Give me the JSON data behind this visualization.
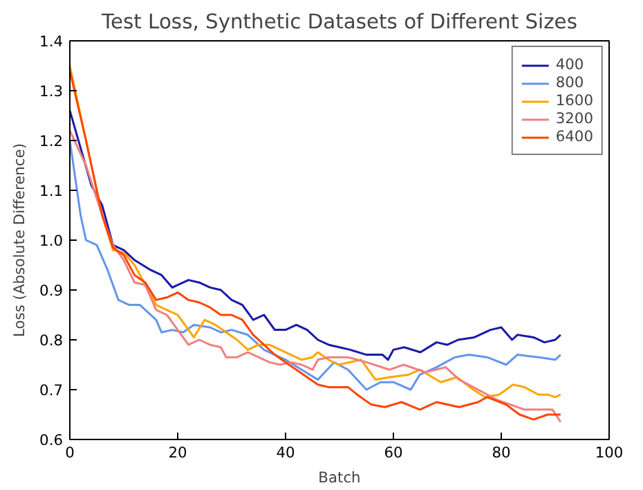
{
  "chart_data": {
    "type": "line",
    "title": "Test Loss, Synthetic Datasets of Different Sizes",
    "xlabel": "Batch",
    "ylabel": "Loss (Absolute Difference)",
    "xlim": [
      0,
      100
    ],
    "ylim": [
      0.6,
      1.4
    ],
    "xticks": [
      0,
      20,
      40,
      60,
      80,
      100
    ],
    "yticks": [
      0.6,
      0.7,
      0.8,
      0.9,
      {
        "value": 1.0,
        "label": "1.0"
      },
      1.1,
      1.2,
      1.3,
      1.4
    ],
    "grid": false,
    "legend": "top right",
    "marker": "none",
    "line_style": "solid",
    "series": [
      {
        "name": "400",
        "color": "#1a1aaa",
        "x": [
          0,
          4,
          6,
          8,
          10,
          12,
          15,
          17,
          19,
          22,
          24,
          26,
          28,
          30,
          32,
          34,
          36,
          38,
          40,
          42,
          44,
          46,
          48,
          50,
          52,
          55,
          58,
          59,
          60,
          62,
          65,
          68,
          70,
          72,
          75,
          78,
          80,
          82,
          83,
          86,
          88,
          90,
          91
        ],
        "values": [
          1.26,
          1.11,
          1.07,
          0.99,
          0.98,
          0.96,
          0.94,
          0.93,
          0.905,
          0.92,
          0.915,
          0.905,
          0.9,
          0.88,
          0.87,
          0.84,
          0.85,
          0.82,
          0.82,
          0.83,
          0.82,
          0.8,
          0.79,
          0.785,
          0.78,
          0.77,
          0.77,
          0.76,
          0.78,
          0.785,
          0.775,
          0.795,
          0.79,
          0.8,
          0.805,
          0.82,
          0.825,
          0.8,
          0.81,
          0.805,
          0.795,
          0.8,
          0.81
        ]
      },
      {
        "name": "800",
        "color": "#6495ed",
        "x": [
          0,
          2,
          3,
          5,
          7,
          9,
          11,
          13,
          16,
          17,
          19,
          21,
          23,
          26,
          28,
          30,
          33,
          36,
          38,
          40,
          43,
          46,
          49,
          51.6,
          55,
          57.6,
          60,
          63.2,
          64.9,
          68,
          69.7,
          71.4,
          74,
          77.4,
          80.9,
          83,
          87,
          90,
          91
        ],
        "values": [
          1.2,
          1.05,
          1.0,
          0.99,
          0.94,
          0.88,
          0.87,
          0.87,
          0.84,
          0.815,
          0.82,
          0.815,
          0.83,
          0.825,
          0.815,
          0.82,
          0.81,
          0.78,
          0.77,
          0.76,
          0.74,
          0.72,
          0.755,
          0.74,
          0.7,
          0.715,
          0.715,
          0.7,
          0.73,
          0.745,
          0.755,
          0.765,
          0.77,
          0.765,
          0.75,
          0.77,
          0.765,
          0.76,
          0.77
        ]
      },
      {
        "name": "1600",
        "color": "#ffa500",
        "x": [
          0,
          3,
          6,
          8,
          10,
          12,
          14,
          16,
          18,
          20,
          22,
          23,
          25,
          27,
          29,
          31,
          33,
          35,
          37,
          39,
          41,
          43,
          45,
          46,
          48,
          49.8,
          54,
          56.7,
          59.3,
          62.8,
          64.9,
          68.8,
          71.8,
          74.8,
          77,
          79.6,
          82.2,
          84.3,
          86.9,
          88.6,
          90,
          91
        ],
        "values": [
          1.35,
          1.2,
          1.05,
          0.98,
          0.975,
          0.95,
          0.91,
          0.87,
          0.86,
          0.85,
          0.82,
          0.805,
          0.84,
          0.83,
          0.815,
          0.8,
          0.78,
          0.79,
          0.79,
          0.78,
          0.77,
          0.76,
          0.765,
          0.775,
          0.76,
          0.75,
          0.76,
          0.72,
          0.725,
          0.73,
          0.74,
          0.715,
          0.725,
          0.7,
          0.685,
          0.69,
          0.71,
          0.705,
          0.69,
          0.69,
          0.685,
          0.69
        ]
      },
      {
        "name": "3200",
        "color": "#f08080",
        "x": [
          0,
          3,
          6,
          8,
          10,
          12,
          14,
          16,
          18,
          20,
          22,
          24,
          26,
          28,
          29,
          31,
          33,
          35,
          37,
          39,
          41,
          43,
          45,
          46,
          48,
          51.6,
          55,
          59.3,
          61.9,
          66,
          69.7,
          72.2,
          75.7,
          79.1,
          81.7,
          84.3,
          86.9,
          89.5,
          91
        ],
        "values": [
          1.22,
          1.15,
          1.05,
          0.99,
          0.96,
          0.915,
          0.91,
          0.86,
          0.85,
          0.82,
          0.79,
          0.8,
          0.79,
          0.785,
          0.765,
          0.765,
          0.775,
          0.765,
          0.755,
          0.75,
          0.755,
          0.75,
          0.74,
          0.76,
          0.765,
          0.765,
          0.755,
          0.74,
          0.75,
          0.735,
          0.745,
          0.72,
          0.7,
          0.68,
          0.67,
          0.66,
          0.66,
          0.66,
          0.635
        ]
      },
      {
        "name": "6400",
        "color": "#ff4500",
        "x": [
          0,
          3,
          6,
          8,
          10,
          12,
          14,
          16,
          18,
          20,
          22,
          24,
          26,
          28,
          30,
          32,
          34,
          36,
          38,
          40,
          42,
          44,
          46,
          48,
          50,
          51.6,
          53.3,
          55.9,
          58.4,
          61.5,
          64.9,
          68,
          72.2,
          75.7,
          77.4,
          80.9,
          83.4,
          86,
          88.6,
          91
        ],
        "values": [
          1.34,
          1.2,
          1.05,
          0.985,
          0.97,
          0.93,
          0.915,
          0.88,
          0.885,
          0.895,
          0.88,
          0.875,
          0.865,
          0.85,
          0.85,
          0.84,
          0.81,
          0.79,
          0.77,
          0.755,
          0.74,
          0.725,
          0.71,
          0.705,
          0.705,
          0.705,
          0.69,
          0.67,
          0.665,
          0.675,
          0.66,
          0.675,
          0.665,
          0.675,
          0.685,
          0.67,
          0.65,
          0.64,
          0.65,
          0.65
        ]
      }
    ]
  }
}
